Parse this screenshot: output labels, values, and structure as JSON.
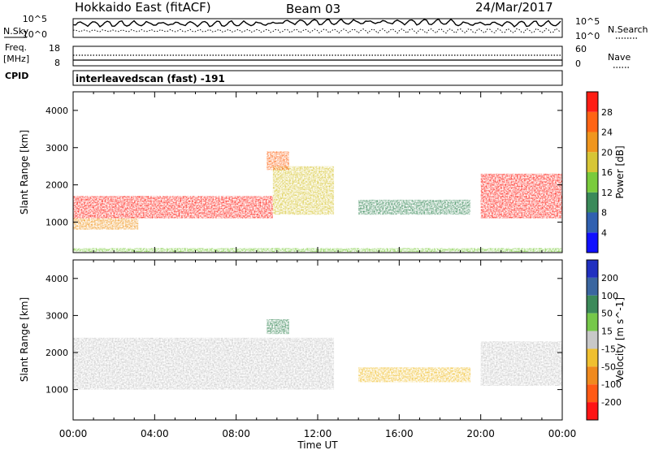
{
  "header": {
    "station": "Hokkaido East (fitACF)",
    "beam": "Beam 03",
    "date": "24/Mar/2017"
  },
  "summary_panels": {
    "nsky_label": "N.Sky",
    "nsearch_label": "N.Search",
    "freq_label": "Freq.",
    "freq_unit": "[MHz]",
    "nave_label": "Nave",
    "cpid_label": "CPID",
    "noise_ticks": [
      "10^5",
      "10^0"
    ],
    "noise_right_ticks": [
      "10^5",
      "10^0"
    ],
    "freq_ticks": [
      "18",
      "8"
    ],
    "nave_ticks": [
      "60",
      "0"
    ],
    "cpid_text": "interleavedscan (fast) -191"
  },
  "chart_data": [
    {
      "type": "heatmap",
      "parameter": "power",
      "ylabel": "Slant Range [km]",
      "ylim": [
        180,
        4500
      ],
      "yticks": [
        1000,
        2000,
        3000,
        4000
      ],
      "colorbar": {
        "label": "Power [dB]",
        "ticks": [
          4,
          8,
          12,
          16,
          20,
          24,
          28
        ],
        "range": [
          0,
          32
        ],
        "colors": [
          "#1010ff",
          "#3060b0",
          "#3a8a5a",
          "#7acb3c",
          "#d7c636",
          "#f0961e",
          "#ff6414",
          "#ff1e14"
        ]
      },
      "regions": [
        {
          "t": [
            0.0,
            9.8
          ],
          "r": [
            1100,
            1700
          ],
          "value": 28
        },
        {
          "t": [
            0.0,
            3.2
          ],
          "r": [
            800,
            1100
          ],
          "value": 20
        },
        {
          "t": [
            9.8,
            12.8
          ],
          "r": [
            1200,
            2500
          ],
          "value": 18
        },
        {
          "t": [
            9.5,
            10.6
          ],
          "r": [
            2400,
            2900
          ],
          "value": 24
        },
        {
          "t": [
            14.0,
            19.5
          ],
          "r": [
            1200,
            1600
          ],
          "value": 10
        },
        {
          "t": [
            20.0,
            24.0
          ],
          "r": [
            1100,
            2300
          ],
          "value": 28
        },
        {
          "t": [
            0.0,
            24.0
          ],
          "r": [
            200,
            300
          ],
          "value": 12
        }
      ]
    },
    {
      "type": "heatmap",
      "parameter": "velocity",
      "xlabel": "Time UT",
      "ylabel": "Slant Range [km]",
      "ylim": [
        180,
        4500
      ],
      "yticks": [
        1000,
        2000,
        3000,
        4000
      ],
      "x_ticks": [
        "00:00",
        "04:00",
        "08:00",
        "12:00",
        "16:00",
        "20:00",
        "00:00"
      ],
      "xlim_hours": [
        0,
        24
      ],
      "colorbar": {
        "label": "Velocity [m s^-1]",
        "ticks": [
          200,
          100,
          50,
          15,
          -15,
          -50,
          -100,
          -200
        ],
        "colors": [
          "#2030c0",
          "#3a66a0",
          "#3c8a5a",
          "#76c84a",
          "#c8c8c8",
          "#f0c030",
          "#f08a1e",
          "#ff5a14",
          "#ff1414"
        ]
      },
      "regions": [
        {
          "t": [
            0.0,
            12.8
          ],
          "r": [
            1000,
            2400
          ],
          "value": 0
        },
        {
          "t": [
            9.5,
            10.6
          ],
          "r": [
            2500,
            2900
          ],
          "value": 60
        },
        {
          "t": [
            14.0,
            19.5
          ],
          "r": [
            1200,
            1600
          ],
          "value": -40
        },
        {
          "t": [
            20.0,
            24.0
          ],
          "r": [
            1100,
            2300
          ],
          "value": 0
        }
      ]
    }
  ]
}
